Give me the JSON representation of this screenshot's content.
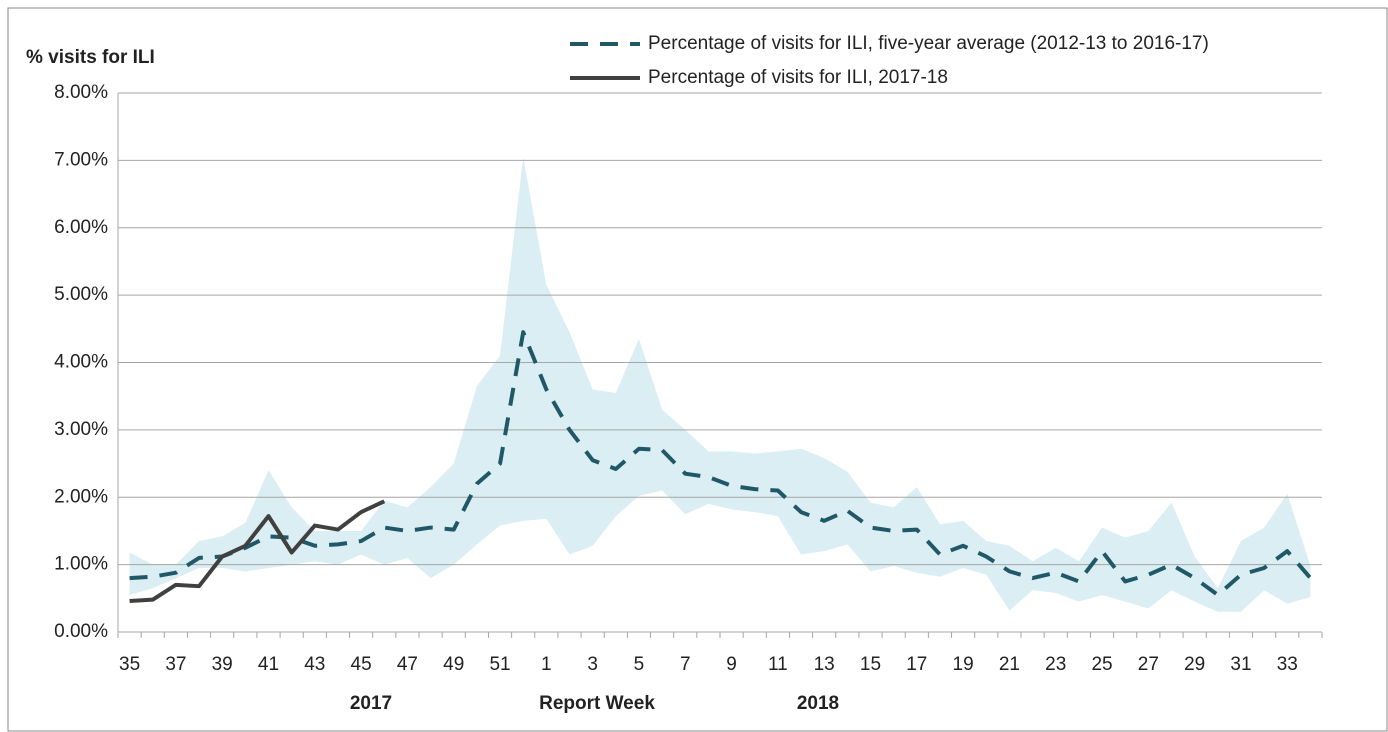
{
  "chart_data": {
    "type": "line",
    "y_axis_label": "% visits for ILI",
    "x_axis_label": "Report Week",
    "annotations": [
      "2017",
      "2018"
    ],
    "categories": [
      "35",
      null,
      "37",
      null,
      "39",
      null,
      "41",
      null,
      "43",
      null,
      "45",
      null,
      "47",
      null,
      "49",
      null,
      "51",
      null,
      "1",
      null,
      "3",
      null,
      "5",
      null,
      "7",
      null,
      "9",
      null,
      "11",
      null,
      "13",
      null,
      "15",
      null,
      "17",
      null,
      "19",
      null,
      "21",
      null,
      "23",
      null,
      "25",
      null,
      "27",
      null,
      "29",
      null,
      "31",
      null,
      "33",
      null
    ],
    "band": {
      "color": "#daeef3",
      "upper": [
        1.18,
        1.0,
        1.0,
        1.35,
        1.42,
        1.62,
        2.4,
        1.85,
        1.5,
        1.5,
        1.5,
        1.95,
        1.85,
        2.15,
        2.5,
        3.65,
        4.1,
        7.05,
        5.15,
        4.45,
        3.6,
        3.55,
        4.35,
        3.3,
        3.0,
        2.68,
        2.68,
        2.65,
        2.68,
        2.72,
        2.58,
        2.38,
        1.92,
        1.85,
        2.15,
        1.6,
        1.65,
        1.35,
        1.28,
        1.05,
        1.25,
        1.05,
        1.55,
        1.4,
        1.5,
        1.92,
        1.12,
        0.65,
        1.35,
        1.55,
        2.05,
        0.98
      ],
      "lower": [
        0.55,
        0.65,
        0.8,
        0.95,
        0.95,
        0.9,
        0.95,
        1.0,
        1.05,
        1.0,
        1.15,
        1.0,
        1.1,
        0.8,
        1.0,
        1.3,
        1.58,
        1.65,
        1.68,
        1.15,
        1.28,
        1.72,
        2.02,
        2.1,
        1.75,
        1.9,
        1.82,
        1.78,
        1.72,
        1.15,
        1.2,
        1.3,
        0.9,
        0.98,
        0.88,
        0.82,
        0.95,
        0.85,
        0.32,
        0.62,
        0.58,
        0.45,
        0.55,
        0.45,
        0.35,
        0.62,
        0.45,
        0.3,
        0.3,
        0.62,
        0.42,
        0.52
      ]
    },
    "series": [
      {
        "name": "Percentage of visits for ILI, five-year average (2012-13 to 2016-17)",
        "color": "#215868",
        "dashed": true,
        "values": [
          0.8,
          0.82,
          0.88,
          1.1,
          1.12,
          1.25,
          1.42,
          1.4,
          1.28,
          1.3,
          1.35,
          1.55,
          1.5,
          1.55,
          1.52,
          2.2,
          2.5,
          4.45,
          3.6,
          3.0,
          2.55,
          2.42,
          2.72,
          2.7,
          2.35,
          2.3,
          2.17,
          2.12,
          2.1,
          1.78,
          1.65,
          1.8,
          1.55,
          1.5,
          1.52,
          1.15,
          1.28,
          1.12,
          0.9,
          0.8,
          0.88,
          0.75,
          1.2,
          0.75,
          0.85,
          1.0,
          0.8,
          0.55,
          0.85,
          0.95,
          1.2,
          0.8
        ]
      },
      {
        "name": "Percentage of visits for ILI, 2017-18",
        "color": "#404040",
        "dashed": false,
        "values": [
          0.46,
          0.48,
          0.7,
          0.68,
          1.12,
          1.28,
          1.72,
          1.18,
          1.58,
          1.52,
          1.78,
          1.94,
          null,
          null,
          null,
          null,
          null,
          null,
          null,
          null,
          null,
          null,
          null,
          null,
          null,
          null,
          null,
          null,
          null,
          null,
          null,
          null,
          null,
          null,
          null,
          null,
          null,
          null,
          null,
          null,
          null,
          null,
          null,
          null,
          null,
          null,
          null,
          null,
          null,
          null,
          null,
          null
        ]
      }
    ],
    "ylim": [
      0,
      8
    ],
    "yticks": [
      {
        "value": 0,
        "label": "0.00%"
      },
      {
        "value": 1,
        "label": "1.00%"
      },
      {
        "value": 2,
        "label": "2.00%"
      },
      {
        "value": 3,
        "label": "3.00%"
      },
      {
        "value": 4,
        "label": "4.00%"
      },
      {
        "value": 5,
        "label": "5.00%"
      },
      {
        "value": 6,
        "label": "6.00%"
      },
      {
        "value": 7,
        "label": "7.00%"
      },
      {
        "value": 8,
        "label": "8.00%"
      }
    ],
    "grid": true
  }
}
